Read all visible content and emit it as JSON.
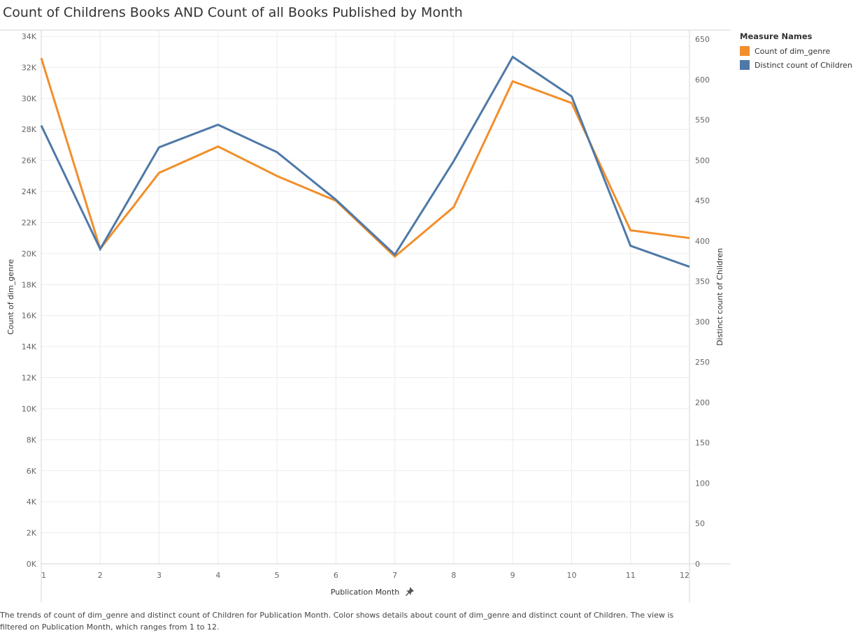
{
  "title": "Count of Childrens Books AND Count of all Books Published by Month",
  "legend": {
    "title": "Measure Names",
    "items": [
      {
        "label": "Count of dim_genre",
        "color": "#f28e2b"
      },
      {
        "label": "Distinct count of Children",
        "color": "#4e79a7"
      }
    ]
  },
  "caption": "The trends of count of dim_genre and distinct count of Children for Publication Month.  Color shows details about count of dim_genre and distinct count of Children. The view is filtered on Publication Month, which ranges from 1 to 12.",
  "chart_data": {
    "type": "line",
    "x": [
      1,
      2,
      3,
      4,
      5,
      6,
      7,
      8,
      9,
      10,
      11,
      12
    ],
    "xlabel": "Publication Month",
    "ylabel": "Count of dim_genre",
    "y2label": "Distinct count of Children",
    "ylim": [
      0,
      34000
    ],
    "y2lim": [
      0,
      650
    ],
    "yticks": [
      "0K",
      "2K",
      "4K",
      "6K",
      "8K",
      "10K",
      "12K",
      "14K",
      "16K",
      "18K",
      "20K",
      "22K",
      "24K",
      "26K",
      "28K",
      "30K",
      "32K",
      "34K"
    ],
    "y2ticks": [
      "0",
      "50",
      "100",
      "150",
      "200",
      "250",
      "300",
      "350",
      "400",
      "450",
      "500",
      "550",
      "600",
      "650"
    ],
    "xticks": [
      "1",
      "2",
      "3",
      "4",
      "5",
      "6",
      "7",
      "8",
      "9",
      "10",
      "11",
      "12"
    ],
    "grid": true,
    "series": [
      {
        "name": "Count of dim_genre",
        "axis": "left",
        "color": "#f28e2b",
        "values": [
          32600,
          20300,
          25200,
          26900,
          25000,
          23400,
          19800,
          23000,
          31100,
          29700,
          21500,
          21000
        ]
      },
      {
        "name": "Distinct count of Children",
        "axis": "right",
        "color": "#4e79a7",
        "values": [
          543,
          390,
          516,
          544,
          510,
          451,
          383,
          499,
          628,
          579,
          394,
          368
        ]
      }
    ]
  }
}
